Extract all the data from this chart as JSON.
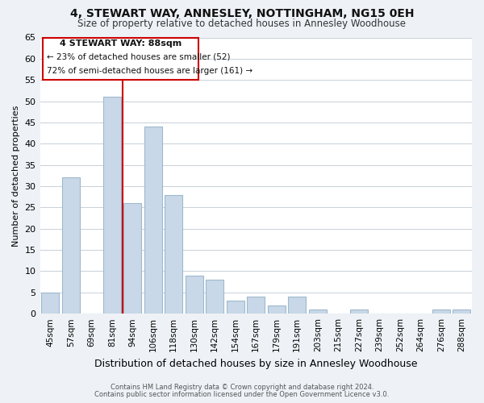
{
  "title": "4, STEWART WAY, ANNESLEY, NOTTINGHAM, NG15 0EH",
  "subtitle": "Size of property relative to detached houses in Annesley Woodhouse",
  "xlabel": "Distribution of detached houses by size in Annesley Woodhouse",
  "ylabel": "Number of detached properties",
  "bar_labels": [
    "45sqm",
    "57sqm",
    "69sqm",
    "81sqm",
    "94sqm",
    "106sqm",
    "118sqm",
    "130sqm",
    "142sqm",
    "154sqm",
    "167sqm",
    "179sqm",
    "191sqm",
    "203sqm",
    "215sqm",
    "227sqm",
    "239sqm",
    "252sqm",
    "264sqm",
    "276sqm",
    "288sqm"
  ],
  "bar_values": [
    5,
    32,
    0,
    51,
    26,
    44,
    28,
    9,
    8,
    3,
    4,
    2,
    4,
    1,
    0,
    1,
    0,
    0,
    0,
    1,
    1
  ],
  "bar_color": "#c8d8e8",
  "bar_edge_color": "#a0b8cc",
  "ylim": [
    0,
    65
  ],
  "yticks": [
    0,
    5,
    10,
    15,
    20,
    25,
    30,
    35,
    40,
    45,
    50,
    55,
    60,
    65
  ],
  "annotation_title": "4 STEWART WAY: 88sqm",
  "annotation_line1": "← 23% of detached houses are smaller (52)",
  "annotation_line2": "72% of semi-detached houses are larger (161) →",
  "annotation_box_color": "#ffffff",
  "annotation_box_edge": "#cc0000",
  "red_line_color": "#cc0000",
  "footer1": "Contains HM Land Registry data © Crown copyright and database right 2024.",
  "footer2": "Contains public sector information licensed under the Open Government Licence v3.0.",
  "background_color": "#eef2f7",
  "plot_bg_color": "#ffffff",
  "grid_color": "#c8d0d8"
}
